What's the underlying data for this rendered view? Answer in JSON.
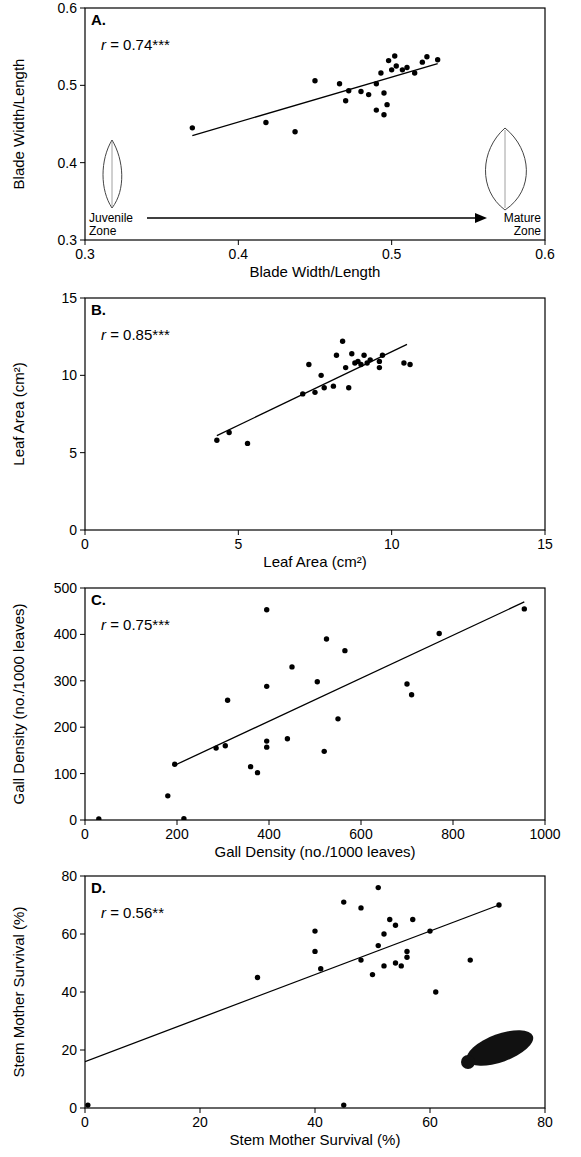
{
  "chart_data": [
    {
      "type": "scatter",
      "panel_label": "A.",
      "annotation": "r = 0.74***",
      "x_label": "Blade Width/Length",
      "y_label": "Blade Width/Length",
      "zone_labels": [
        "Juvenile Zone",
        "Mature Zone"
      ],
      "color": "#000000",
      "marker": "circle",
      "xlim": [
        0.3,
        0.6
      ],
      "ylim": [
        0.3,
        0.6
      ],
      "xticks": [
        0.3,
        0.4,
        0.5,
        0.6
      ],
      "yticks": [
        0.3,
        0.4,
        0.5,
        0.6
      ],
      "x": [
        0.37,
        0.418,
        0.437,
        0.45,
        0.466,
        0.47,
        0.472,
        0.48,
        0.485,
        0.49,
        0.49,
        0.493,
        0.495,
        0.495,
        0.497,
        0.498,
        0.5,
        0.502,
        0.503,
        0.507,
        0.51,
        0.515,
        0.52,
        0.523,
        0.53
      ],
      "values": [
        0.445,
        0.452,
        0.44,
        0.506,
        0.502,
        0.48,
        0.493,
        0.492,
        0.488,
        0.468,
        0.502,
        0.516,
        0.49,
        0.462,
        0.475,
        0.532,
        0.52,
        0.538,
        0.525,
        0.52,
        0.523,
        0.516,
        0.53,
        0.537,
        0.533
      ],
      "trend_line": {
        "x": [
          0.37,
          0.53
        ],
        "y": [
          0.435,
          0.528
        ]
      }
    },
    {
      "type": "scatter",
      "panel_label": "B.",
      "annotation": "r = 0.85***",
      "x_label": "Leaf Area (cm²)",
      "y_label": "Leaf Area (cm²)",
      "color": "#000000",
      "marker": "circle",
      "xlim": [
        0,
        15
      ],
      "ylim": [
        0,
        15
      ],
      "xticks": [
        0,
        5,
        10,
        15
      ],
      "yticks": [
        0,
        5,
        10,
        15
      ],
      "x": [
        4.3,
        4.7,
        5.3,
        7.1,
        7.3,
        7.5,
        7.7,
        7.8,
        8.1,
        8.2,
        8.4,
        8.5,
        8.6,
        8.7,
        8.8,
        8.9,
        9.0,
        9.1,
        9.2,
        9.3,
        9.6,
        9.7,
        9.6,
        10.4,
        10.6
      ],
      "values": [
        5.8,
        6.3,
        5.6,
        8.8,
        10.7,
        8.9,
        10.0,
        9.2,
        9.3,
        11.3,
        12.2,
        10.5,
        9.2,
        11.4,
        10.8,
        10.9,
        10.7,
        11.3,
        10.8,
        11.0,
        10.5,
        11.3,
        10.9,
        10.8,
        10.7
      ],
      "trend_line": {
        "x": [
          4.3,
          10.5
        ],
        "y": [
          6.1,
          12.0
        ]
      }
    },
    {
      "type": "scatter",
      "panel_label": "C.",
      "annotation": "r = 0.75***",
      "x_label": "Gall Density (no./1000 leaves)",
      "y_label": "Gall Density (no./1000 leaves)",
      "color": "#000000",
      "marker": "circle",
      "xlim": [
        0,
        1000
      ],
      "ylim": [
        0,
        500
      ],
      "xticks": [
        0,
        200,
        400,
        600,
        800,
        1000
      ],
      "yticks": [
        0,
        100,
        200,
        300,
        400,
        500
      ],
      "x": [
        30,
        180,
        195,
        215,
        285,
        305,
        310,
        360,
        375,
        395,
        395,
        395,
        395,
        440,
        450,
        505,
        520,
        525,
        550,
        565,
        700,
        710,
        770,
        955
      ],
      "values": [
        2,
        52,
        120,
        3,
        155,
        160,
        258,
        115,
        102,
        453,
        288,
        170,
        157,
        175,
        330,
        298,
        148,
        390,
        218,
        365,
        293,
        270,
        402,
        455
      ],
      "trend_line": {
        "x": [
          195,
          955
        ],
        "y": [
          118,
          470
        ]
      }
    },
    {
      "type": "scatter",
      "panel_label": "D.",
      "annotation": "r = 0.56**",
      "x_label": "Stem Mother Survival (%)",
      "y_label": "Stem Mother Survival (%)",
      "color": "#000000",
      "marker": "circle",
      "xlim": [
        0,
        80
      ],
      "ylim": [
        0,
        80
      ],
      "xticks": [
        0,
        20,
        40,
        60,
        80
      ],
      "yticks": [
        0,
        20,
        40,
        60,
        80
      ],
      "x": [
        0.5,
        30,
        40,
        40,
        41,
        45,
        45,
        48,
        48,
        50,
        51,
        51,
        52,
        52,
        53,
        54,
        54,
        55,
        56,
        56,
        57,
        60,
        61,
        67,
        72
      ],
      "values": [
        1,
        45,
        61,
        54,
        48,
        71,
        1,
        69,
        51,
        46,
        76,
        56,
        60,
        49,
        65,
        50,
        63,
        49,
        54,
        52,
        65,
        61,
        40,
        51,
        70
      ],
      "trend_line": {
        "x": [
          0,
          72
        ],
        "y": [
          16,
          70
        ]
      }
    }
  ]
}
